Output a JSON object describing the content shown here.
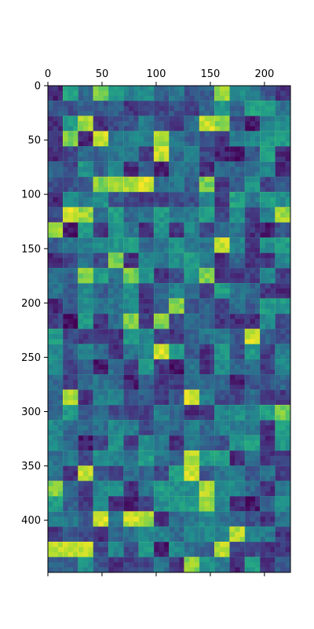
{
  "chart_data": {
    "type": "heatmap",
    "title": "",
    "xlabel": "",
    "ylabel": "",
    "colormap": "viridis",
    "xlim": [
      0,
      224
    ],
    "ylim": [
      448,
      0
    ],
    "x_ticks": [
      0,
      50,
      100,
      150,
      200
    ],
    "y_ticks": [
      0,
      50,
      100,
      150,
      200,
      250,
      300,
      350,
      400
    ],
    "x_ticks_position": "top",
    "grid": false,
    "legend": "none",
    "tile_grid": {
      "columns": 16,
      "rows": 32,
      "tile_size": 14,
      "seed": 12345
    }
  }
}
